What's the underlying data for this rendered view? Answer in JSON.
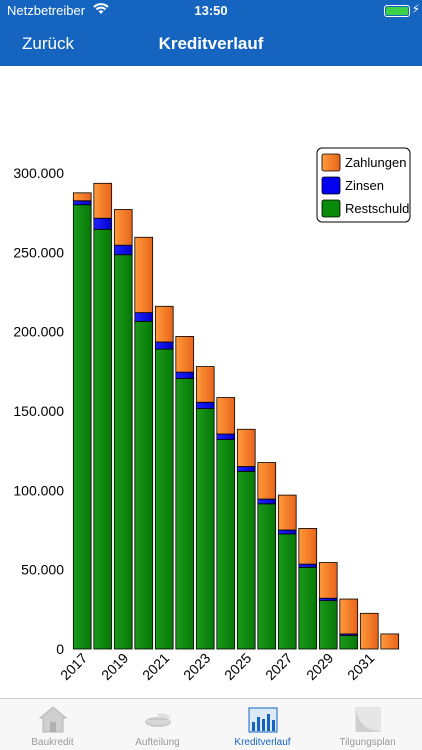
{
  "status": {
    "carrier": "Netzbetreiber",
    "time": "13:50"
  },
  "nav": {
    "back_label": "Zurück",
    "title": "Kreditverlauf"
  },
  "chart_data": {
    "type": "bar",
    "stacked": true,
    "categories": [
      "2017",
      "2018",
      "2019",
      "2020",
      "2021",
      "2022",
      "2023",
      "2024",
      "2025",
      "2026",
      "2027",
      "2028",
      "2029",
      "2030",
      "2031",
      "2032"
    ],
    "x_tick_labels": [
      "2017",
      "2019",
      "2021",
      "2023",
      "2025",
      "2027",
      "2029",
      "2031"
    ],
    "series": [
      {
        "name": "Restschuld",
        "color": "#0a8a0a",
        "values": [
          280000,
          264500,
          248500,
          206500,
          189000,
          170500,
          151500,
          132000,
          112000,
          91500,
          72500,
          51500,
          30500,
          8500,
          0,
          0
        ]
      },
      {
        "name": "Zinsen",
        "color": "#0000ee",
        "values": [
          2500,
          7000,
          6000,
          5500,
          4500,
          4000,
          4000,
          3500,
          3000,
          3000,
          2500,
          2000,
          1500,
          1000,
          0,
          0
        ]
      },
      {
        "name": "Zahlungen",
        "color": "#f07020",
        "values": [
          5000,
          22000,
          22500,
          47500,
          22500,
          22500,
          22500,
          23000,
          23500,
          23000,
          22000,
          22500,
          22500,
          22000,
          22500,
          9500
        ]
      }
    ],
    "ylim": [
      0,
      300000
    ],
    "y_ticks": [
      "0",
      "50.000",
      "100.000",
      "150.000",
      "200.000",
      "250.000",
      "300.000"
    ],
    "y_tick_values": [
      0,
      50000,
      100000,
      150000,
      200000,
      250000,
      300000
    ],
    "legend": {
      "placement": "top-right",
      "entries": [
        "Zahlungen",
        "Zinsen",
        "Restschuld"
      ]
    },
    "grid": false
  },
  "tabs": [
    {
      "label": "Baukredit",
      "icon": "house-icon",
      "active": false
    },
    {
      "label": "Aufteilung",
      "icon": "pie-chart-icon",
      "active": false
    },
    {
      "label": "Kreditverlauf",
      "icon": "bar-chart-icon",
      "active": true
    },
    {
      "label": "Tilgungsplan",
      "icon": "curve-chart-icon",
      "active": false
    }
  ]
}
